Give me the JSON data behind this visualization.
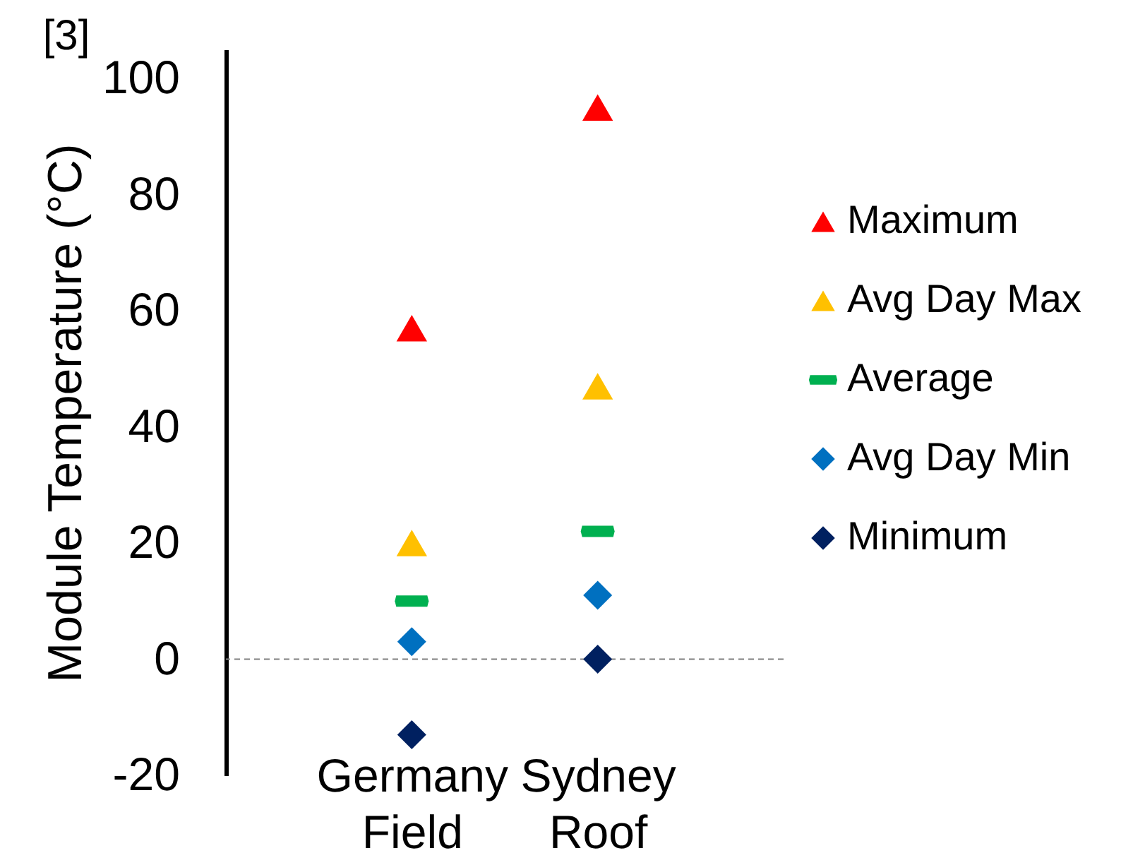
{
  "chart_data": {
    "type": "scatter",
    "categories": [
      "Germany Field",
      "Sydney Roof"
    ],
    "series": [
      {
        "name": "Maximum",
        "color": "#ff0000",
        "marker": "triangle",
        "values": [
          57,
          95
        ]
      },
      {
        "name": "Avg Day Max",
        "color": "#ffc000",
        "marker": "triangle",
        "values": [
          20,
          47
        ]
      },
      {
        "name": "Average",
        "color": "#00b050",
        "values": [
          10,
          22
        ]
      },
      {
        "name": "Avg Day Min",
        "color": "#0070c0",
        "marker": "diamond",
        "values": [
          3,
          11
        ]
      },
      {
        "name": "Minimum",
        "color": "#002060",
        "marker": "diamond",
        "values": [
          -13,
          0
        ]
      }
    ],
    "ylabel": "Module Temperature (°C)",
    "ylim": [
      -20,
      105
    ],
    "yticks": [
      -20,
      0,
      20,
      40,
      60,
      80,
      100
    ],
    "ref_lines": [
      {
        "axis": "y",
        "value": 0,
        "color": "#808080",
        "line_style": "dashed"
      }
    ],
    "legend": "right",
    "annotations": [
      "[3]"
    ]
  }
}
